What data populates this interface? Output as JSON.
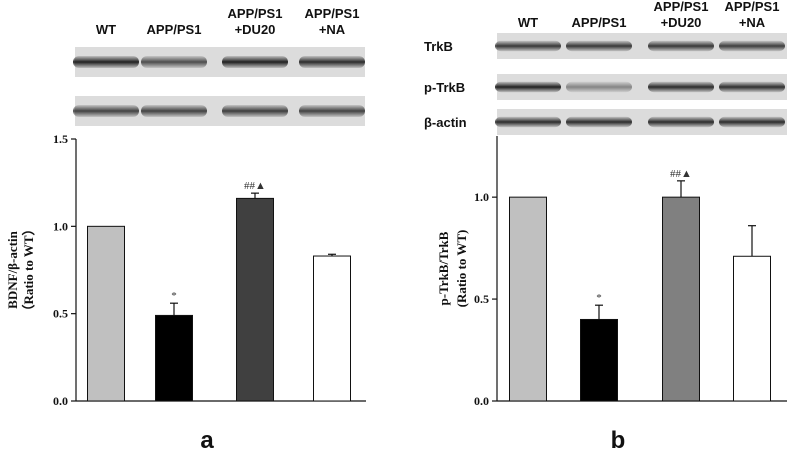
{
  "panels": [
    {
      "letter": "a",
      "lane_labels": [
        [
          "WT"
        ],
        [
          "APP/PS1"
        ],
        [
          "APP/PS1",
          "+DU20"
        ],
        [
          "APP/PS1",
          "+NA"
        ]
      ],
      "blots": [
        {
          "label": "",
          "intensities": [
            0.85,
            0.65,
            0.85,
            0.8
          ]
        },
        {
          "label": "",
          "intensities": [
            0.7,
            0.7,
            0.72,
            0.7
          ]
        }
      ]
    },
    {
      "letter": "b",
      "lane_labels": [
        [
          "WT"
        ],
        [
          "APP/PS1"
        ],
        [
          "APP/PS1",
          "+DU20"
        ],
        [
          "APP/PS1",
          "+NA"
        ]
      ],
      "blots": [
        {
          "label": "TrkB",
          "intensities": [
            0.75,
            0.75,
            0.75,
            0.72
          ]
        },
        {
          "label": "p-TrkB",
          "intensities": [
            0.85,
            0.4,
            0.8,
            0.78
          ]
        },
        {
          "label": "β-actin",
          "intensities": [
            0.8,
            0.8,
            0.8,
            0.8
          ]
        }
      ]
    }
  ],
  "chart_data": [
    {
      "type": "bar",
      "categories": [
        "WT",
        "APP/PS1",
        "APP/PS1+DU20",
        "APP/PS1+NA"
      ],
      "values": [
        1.0,
        0.49,
        1.16,
        0.83
      ],
      "errors": [
        0,
        0.07,
        0.03,
        0.01
      ],
      "annotations": [
        "",
        "*",
        "##▲",
        ""
      ],
      "colors": [
        "#c0c0c0",
        "#000000",
        "#404040",
        "#ffffff"
      ],
      "ylabel_lines": [
        "BDNF/β-actin",
        "（Ratio to WT）"
      ],
      "ylim": [
        0,
        1.5
      ],
      "yticks": [
        "0.0",
        "0.5",
        "1.0",
        "1.5"
      ]
    },
    {
      "type": "bar",
      "categories": [
        "WT",
        "APP/PS1",
        "APP/PS1+DU20",
        "APP/PS1+NA"
      ],
      "values": [
        1.0,
        0.4,
        1.0,
        0.71
      ],
      "errors": [
        0,
        0.07,
        0.08,
        0.15
      ],
      "annotations": [
        "",
        "*",
        "##▲",
        ""
      ],
      "colors": [
        "#c0c0c0",
        "#000000",
        "#808080",
        "#ffffff"
      ],
      "ylabel_lines": [
        "p-TrkB/TrkB",
        "(Ratio to WT)"
      ],
      "ylim": [
        0,
        1.3
      ],
      "yticks": [
        "0.0",
        "0.5",
        "1.0"
      ]
    }
  ]
}
